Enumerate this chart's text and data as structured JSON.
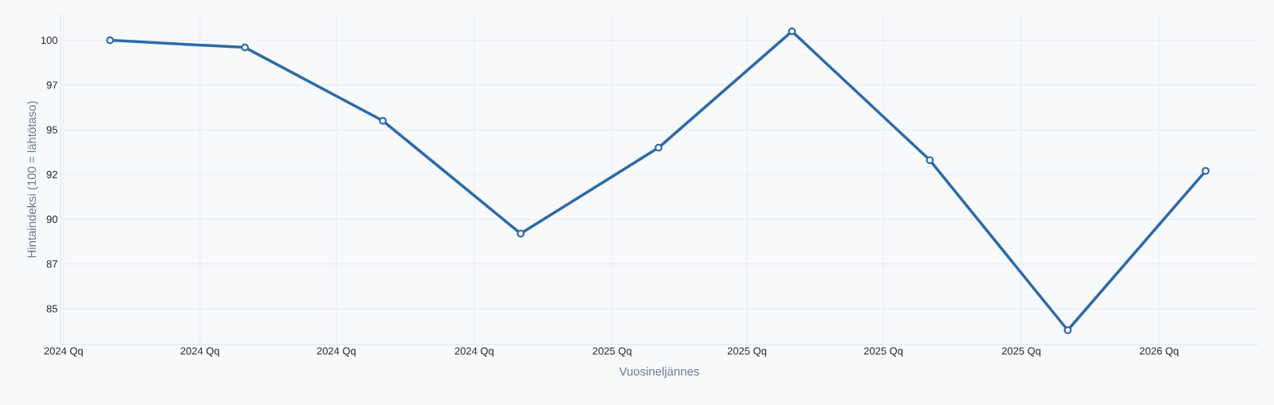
{
  "chart_data": {
    "type": "line",
    "xlabel": "Vuosineljännes",
    "ylabel": "Hintaindeksi (100 = lähtötaso)",
    "x": [
      "2024-02-01",
      "2024-05-01",
      "2024-08-01",
      "2024-11-01",
      "2025-02-01",
      "2025-05-01",
      "2025-08-01",
      "2025-11-01",
      "2026-02-01"
    ],
    "series": [
      {
        "color": "#2e6aa8",
        "values": [
          100.0,
          99.6,
          95.5,
          89.2,
          94.0,
          100.5,
          93.3,
          83.8,
          92.7
        ]
      }
    ],
    "xlim": [
      "2023-12-30",
      "2026-03-08"
    ],
    "xticks": [
      {
        "value": "2024-01-01",
        "label": "2024 Qq"
      },
      {
        "value": "2024-04-01",
        "label": "2024 Qq"
      },
      {
        "value": "2024-07-01",
        "label": "2024 Qq"
      },
      {
        "value": "2024-10-01",
        "label": "2024 Qq"
      },
      {
        "value": "2025-01-01",
        "label": "2025 Qq"
      },
      {
        "value": "2025-04-01",
        "label": "2025 Qq"
      },
      {
        "value": "2025-07-01",
        "label": "2025 Qq"
      },
      {
        "value": "2025-10-01",
        "label": "2025 Qq"
      },
      {
        "value": "2026-01-01",
        "label": "2026 Qq"
      }
    ],
    "ylim": [
      83,
      101.45
    ],
    "yticks": [
      {
        "value": 85,
        "label": "85"
      },
      {
        "value": 87.5,
        "label": "87"
      },
      {
        "value": 90,
        "label": "90"
      },
      {
        "value": 92.5,
        "label": "92"
      },
      {
        "value": 95,
        "label": "95"
      },
      {
        "value": 97.5,
        "label": "97"
      },
      {
        "value": 100,
        "label": "100"
      }
    ],
    "grid": true,
    "marker": "circle",
    "line_style": "solid"
  }
}
